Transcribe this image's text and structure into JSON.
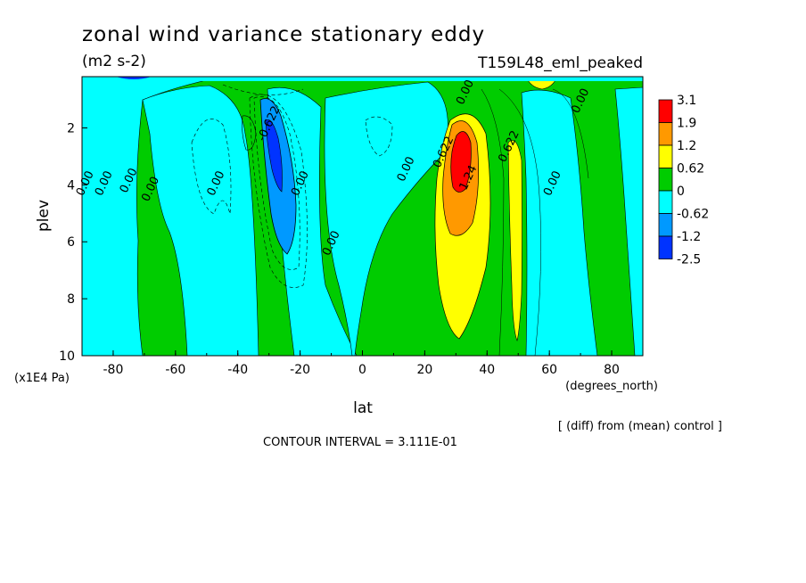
{
  "chart_data": {
    "type": "heatmap",
    "title": "zonal wind variance stationary eddy",
    "units": "(m2 s-2)",
    "run_label": "T159L48_eml_peaked",
    "xlabel": "lat",
    "xlabel_units": "(degrees_north)",
    "ylabel": "plev",
    "ylabel_units": "(x1E4 Pa)",
    "x_ticks": [
      -80,
      -60,
      -40,
      -20,
      0,
      20,
      40,
      60,
      80
    ],
    "y_ticks": [
      2,
      4,
      6,
      8,
      10
    ],
    "xlim": [
      -90,
      90
    ],
    "ylim": [
      10,
      0.2
    ],
    "footnote": "[ (diff) from (mean) control ]",
    "contour_interval": "CONTOUR INTERVAL = 3.111E-01",
    "colorbar": {
      "labels": [
        "3.1",
        "1.9",
        "1.2",
        "0.62",
        "0",
        "-0.62",
        "-1.2",
        "-2.5"
      ],
      "colors": [
        "#ff0000",
        "#ff9900",
        "#ffff00",
        "#00cc00",
        "#00ffff",
        "#0099ff",
        "#0033ff"
      ]
    },
    "contour_labels": [
      {
        "text": "0.00",
        "lat": -88,
        "plev": 4.0
      },
      {
        "text": "0.00",
        "lat": -82,
        "plev": 4.0
      },
      {
        "text": "0.00",
        "lat": -74,
        "plev": 3.9
      },
      {
        "text": "0.00",
        "lat": -67,
        "plev": 4.2
      },
      {
        "text": "0.00",
        "lat": -46,
        "plev": 4.0
      },
      {
        "text": "-0.622",
        "lat": -29,
        "plev": 1.9
      },
      {
        "text": "0.00",
        "lat": -19,
        "plev": 4.0
      },
      {
        "text": "0.00",
        "lat": -9,
        "plev": 6.1
      },
      {
        "text": "0.00",
        "lat": 15,
        "plev": 3.5
      },
      {
        "text": "0.00",
        "lat": 34,
        "plev": 0.8
      },
      {
        "text": "0.622",
        "lat": 27,
        "plev": 2.9
      },
      {
        "text": "1.24",
        "lat": 35,
        "plev": 3.8
      },
      {
        "text": "0.622",
        "lat": 48,
        "plev": 2.7
      },
      {
        "text": "0.00",
        "lat": 62,
        "plev": 4.0
      },
      {
        "text": "0.00",
        "lat": 71,
        "plev": 1.1
      }
    ],
    "features": [
      {
        "sign": "positive",
        "lat_center": 32,
        "plev_center": 3.0,
        "max": 3.1
      },
      {
        "sign": "negative",
        "lat_center": -27,
        "plev_center": 4.0,
        "min": -1.5
      },
      {
        "sign": "negative",
        "lat_center": -50,
        "plev_center": 3.5,
        "min": -0.62
      }
    ]
  }
}
